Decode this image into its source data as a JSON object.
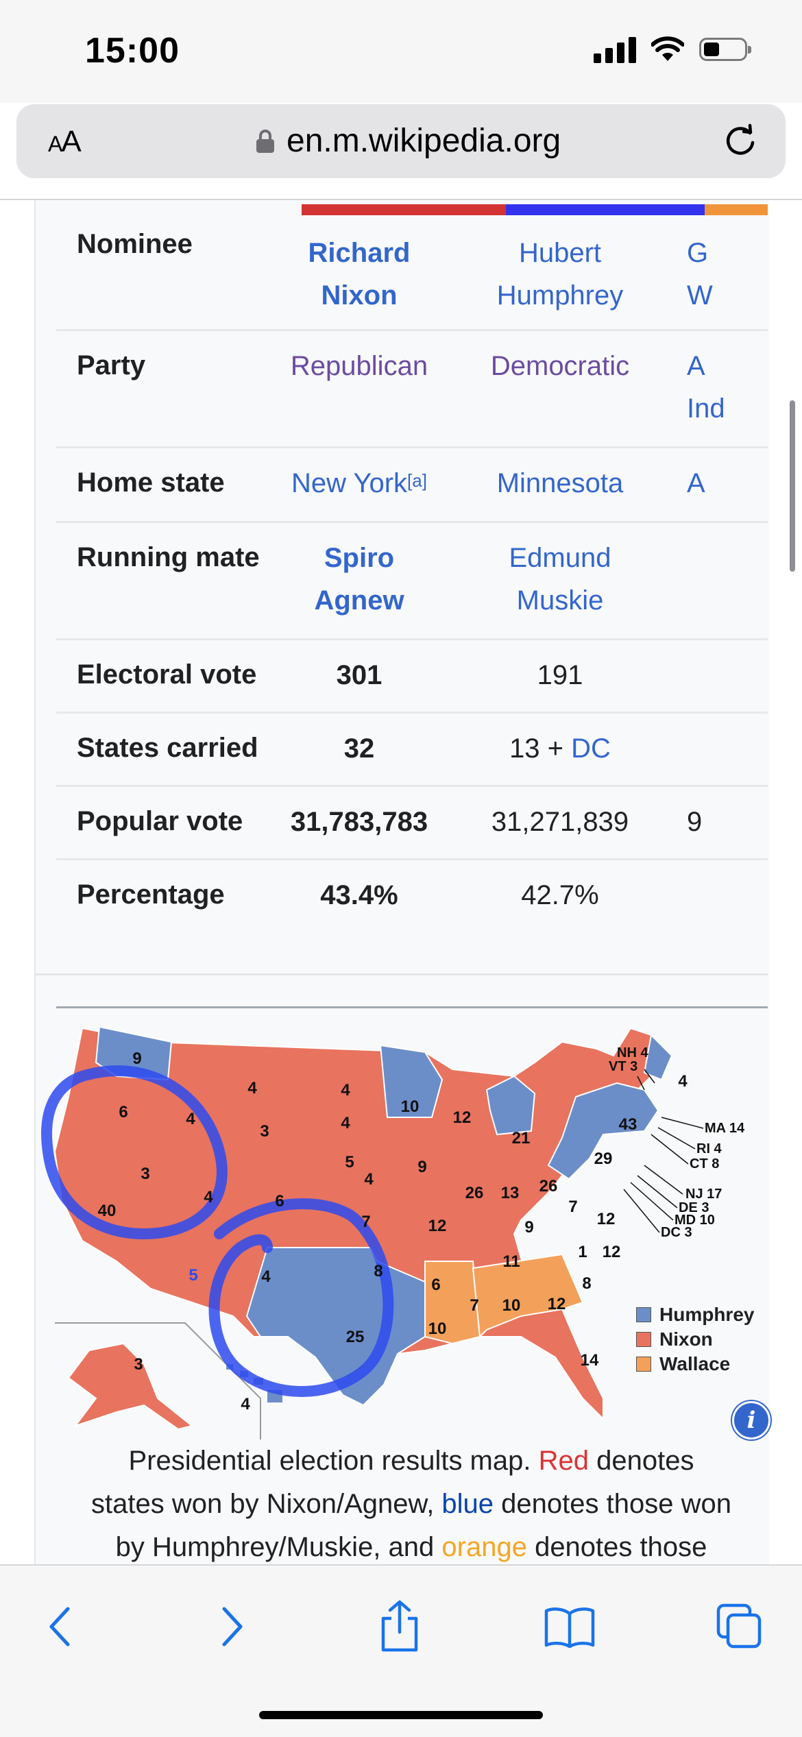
{
  "status_bar": {
    "time": "15:00"
  },
  "browser": {
    "aa_label_a": "A",
    "aa_label_b": "A",
    "url": "en.m.wikipedia.org"
  },
  "infobox": {
    "party_colors": [
      "#d33333",
      "#3333ee",
      "#f0943a"
    ],
    "rows": [
      {
        "label": "Nominee",
        "c1": [
          "Richard",
          "Nixon"
        ],
        "c2": [
          "Hubert",
          "Humphrey"
        ],
        "c3": [
          "G",
          "W"
        ]
      },
      {
        "label": "Party",
        "c1": "Republican",
        "c2": "Democratic",
        "c3": [
          "A",
          "Ind"
        ]
      },
      {
        "label": "Home state",
        "c1": "New York",
        "c1_note": "[a]",
        "c2": "Minnesota",
        "c3": "A"
      },
      {
        "label": "Running mate",
        "c1": [
          "Spiro",
          "Agnew"
        ],
        "c2": [
          "Edmund",
          "Muskie"
        ]
      },
      {
        "label": "Electoral vote",
        "c1": "301",
        "c2": "191"
      },
      {
        "label": "States carried",
        "c1": "32",
        "c2_a": "13 + ",
        "c2_b": "DC"
      },
      {
        "label": "Popular vote",
        "c1": "31,783,783",
        "c2": "31,271,839",
        "c3": "9"
      },
      {
        "label": "Percentage",
        "c1": "43.4%",
        "c2": "42.7%"
      }
    ]
  },
  "map": {
    "state_labels": [
      "9",
      "4",
      "4",
      "10",
      "6",
      "4",
      "4",
      "3",
      "4",
      "3",
      "5",
      "12",
      "21",
      "43",
      "29",
      "4",
      "40",
      "4",
      "6",
      "9",
      "26",
      "13",
      "26",
      "7",
      "12",
      "5",
      "4",
      "7",
      "12",
      "9",
      "11",
      "1",
      "12",
      "8",
      "8",
      "6",
      "25",
      "10",
      "7",
      "10",
      "12",
      "14",
      "3",
      "4"
    ],
    "annotations": [
      "NH 4",
      "VT 3",
      "MA 14",
      "RI 4",
      "CT 8",
      "NJ 17",
      "DE 3",
      "MD 10",
      "DC 3"
    ],
    "legend": [
      {
        "label": "Humphrey",
        "color": "#6b8ec9"
      },
      {
        "label": "Nixon",
        "color": "#e8735e"
      },
      {
        "label": "Wallace",
        "color": "#f3a05a"
      }
    ],
    "info_icon": "i"
  },
  "caption": {
    "line1_a": "Presidential election results map. ",
    "red": "Red",
    "line1_b": " denotes",
    "line2_a": "states won by Nixon/Agnew, ",
    "blue": "blue",
    "line2_b": " denotes those won",
    "line3_a": "by Humphrey/Muskie, and ",
    "orange": "orange",
    "line3_b": " denotes those"
  },
  "toolbar_icons": [
    "back-icon",
    "forward-icon",
    "share-icon",
    "bookmarks-icon",
    "tabs-icon"
  ]
}
